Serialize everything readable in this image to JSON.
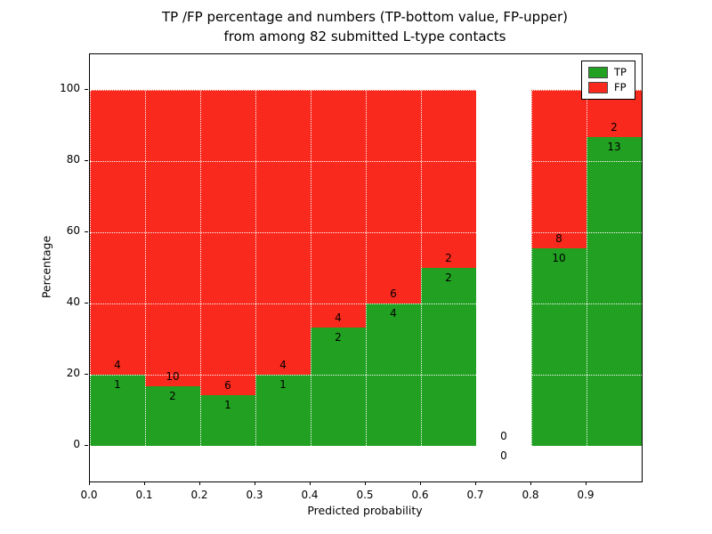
{
  "title": {
    "line1": "TP /FP percentage and numbers (TP-bottom value, FP-upper)",
    "line2": "from among 82 submitted L-type contacts"
  },
  "chart_data": {
    "type": "bar",
    "stacked": true,
    "normalized_to": 100,
    "title": "TP /FP percentage and numbers (TP-bottom value, FP-upper)\nfrom among 82 submitted L-type contacts",
    "xlabel": "Predicted probability",
    "ylabel": "Percentage",
    "xlim": [
      0.0,
      1.0
    ],
    "ylim": [
      -10,
      110
    ],
    "x_tick_labels": [
      "0.0",
      "0.1",
      "0.2",
      "0.3",
      "0.4",
      "0.5",
      "0.6",
      "0.7",
      "0.8",
      "0.9"
    ],
    "y_tick_labels": [
      "0",
      "20",
      "40",
      "60",
      "80",
      "100"
    ],
    "grid": {
      "visible": true,
      "style": "dotted",
      "color": "#ffffff"
    },
    "legend": {
      "position": "upper right",
      "entries": [
        {
          "label": "TP",
          "color": "#22a022"
        },
        {
          "label": "FP",
          "color": "#f9291d"
        }
      ]
    },
    "total_contacts": 82,
    "bins": [
      {
        "x0": 0.0,
        "x1": 0.1,
        "tp": 1,
        "fp": 4,
        "tp_percent": 20.0
      },
      {
        "x0": 0.1,
        "x1": 0.2,
        "tp": 2,
        "fp": 10,
        "tp_percent": 16.7
      },
      {
        "x0": 0.2,
        "x1": 0.3,
        "tp": 1,
        "fp": 6,
        "tp_percent": 14.3
      },
      {
        "x0": 0.3,
        "x1": 0.4,
        "tp": 1,
        "fp": 4,
        "tp_percent": 20.0
      },
      {
        "x0": 0.4,
        "x1": 0.5,
        "tp": 2,
        "fp": 4,
        "tp_percent": 33.3
      },
      {
        "x0": 0.5,
        "x1": 0.6,
        "tp": 4,
        "fp": 6,
        "tp_percent": 40.0
      },
      {
        "x0": 0.6,
        "x1": 0.7,
        "tp": 2,
        "fp": 2,
        "tp_percent": 50.0
      },
      {
        "x0": 0.7,
        "x1": 0.8,
        "tp": 0,
        "fp": 0,
        "tp_percent": 0
      },
      {
        "x0": 0.8,
        "x1": 0.9,
        "tp": 10,
        "fp": 8,
        "tp_percent": 55.6
      },
      {
        "x0": 0.9,
        "x1": 1.0,
        "tp": 13,
        "fp": 2,
        "tp_percent": 86.7
      }
    ]
  },
  "colors": {
    "tp": "#22a022",
    "fp": "#f9291d",
    "background": "#ffffff",
    "axis": "#000000",
    "grid": "#ffffff"
  }
}
